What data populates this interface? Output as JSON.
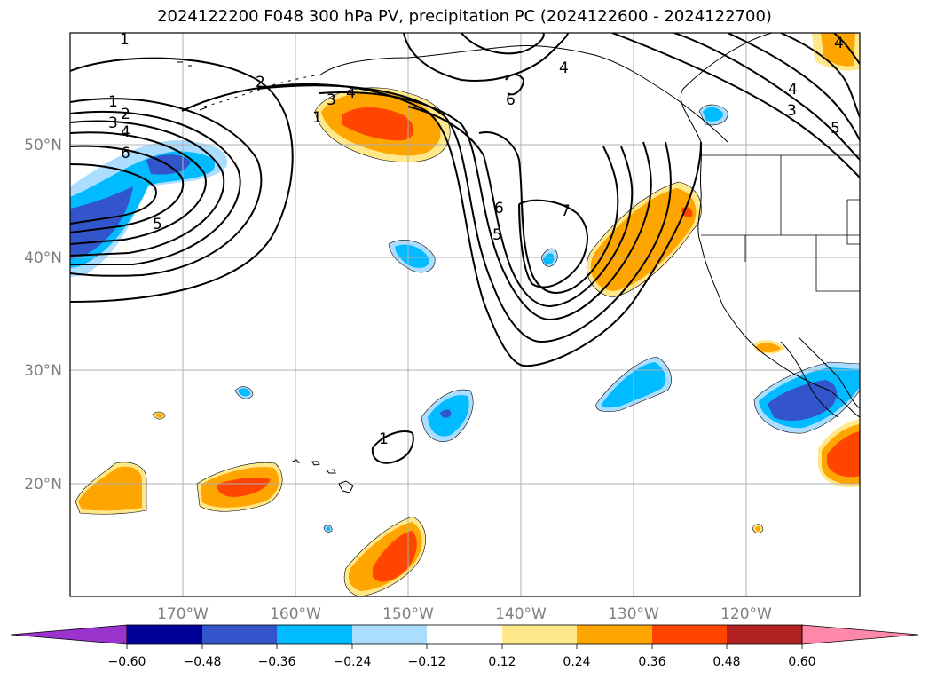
{
  "title": "2024122200 F048 300 hPa PV, precipitation PC (2024122600 - 2024122700)",
  "lat_labels": [
    "50°N",
    "40°N",
    "30°N",
    "20°N"
  ],
  "lon_labels": [
    "170°W",
    "160°W",
    "150°W",
    "140°W",
    "130°W",
    "120°W"
  ],
  "colorbar": {
    "ticks": [
      "−0.60",
      "−0.48",
      "−0.36",
      "−0.24",
      "−0.12",
      "0.12",
      "0.24",
      "0.36",
      "0.48",
      "0.60"
    ],
    "colors": [
      "#9933cc",
      "#000099",
      "#3355cc",
      "#00bbff",
      "#aaddff",
      "#ffffff",
      "#ffe88a",
      "#ffa500",
      "#ff4500",
      "#b22222",
      "#ff88aa"
    ]
  },
  "contour_labels": [
    "1",
    "1",
    "2",
    "3",
    "4",
    "6",
    "5",
    "2",
    "3",
    "4",
    "1",
    "6",
    "6",
    "5",
    "7",
    "4",
    "4",
    "3",
    "5",
    "4",
    "1"
  ],
  "colors": {
    "neg_light": "#aaddff",
    "neg_mid": "#00bbff",
    "neg_strong": "#3355cc",
    "pos_light": "#ffe88a",
    "pos_mid": "#ffa500",
    "pos_strong": "#ff4500"
  }
}
